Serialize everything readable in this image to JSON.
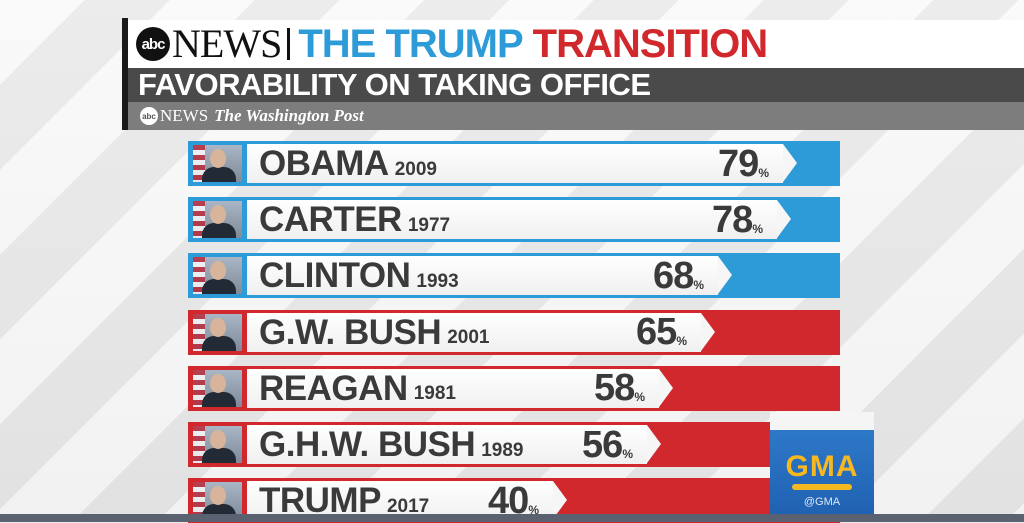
{
  "header": {
    "logo_text": "abc",
    "news_word": "NEWS",
    "title_part1": "THE TRUMP",
    "title_part2": "TRANSITION",
    "subtitle": "FAVORABILITY ON TAKING OFFICE",
    "source_abc": "abc",
    "source_news": "NEWS",
    "source_wapo": "The Washington Post"
  },
  "colors": {
    "democrat": "#2d9bd7",
    "republican": "#d0282c"
  },
  "chart_data": {
    "type": "bar",
    "title": "FAVORABILITY ON TAKING OFFICE",
    "categories": [
      "OBAMA",
      "CARTER",
      "CLINTON",
      "G.W. BUSH",
      "REAGAN",
      "G.H.W. BUSH",
      "TRUMP"
    ],
    "years": [
      "2009",
      "1977",
      "1993",
      "2001",
      "1981",
      "1989",
      "2017"
    ],
    "values": [
      79,
      78,
      68,
      65,
      58,
      56,
      40
    ],
    "parties": [
      "D",
      "D",
      "D",
      "R",
      "R",
      "R",
      "R"
    ],
    "unit": "%",
    "xlim": [
      0,
      100
    ],
    "rows": [
      {
        "name": "OBAMA",
        "year": "2009",
        "value": "79",
        "party": "D"
      },
      {
        "name": "CARTER",
        "year": "1977",
        "value": "78",
        "party": "D"
      },
      {
        "name": "CLINTON",
        "year": "1993",
        "value": "68",
        "party": "D"
      },
      {
        "name": "G.W. BUSH",
        "year": "2001",
        "value": "65",
        "party": "R"
      },
      {
        "name": "REAGAN",
        "year": "1981",
        "value": "58",
        "party": "R"
      },
      {
        "name": "G.H.W. BUSH",
        "year": "1989",
        "value": "56",
        "party": "R"
      },
      {
        "name": "TRUMP",
        "year": "2017",
        "value": "40",
        "party": "R"
      }
    ]
  },
  "gma": {
    "logo": "GMA",
    "handle": "@GMA"
  }
}
